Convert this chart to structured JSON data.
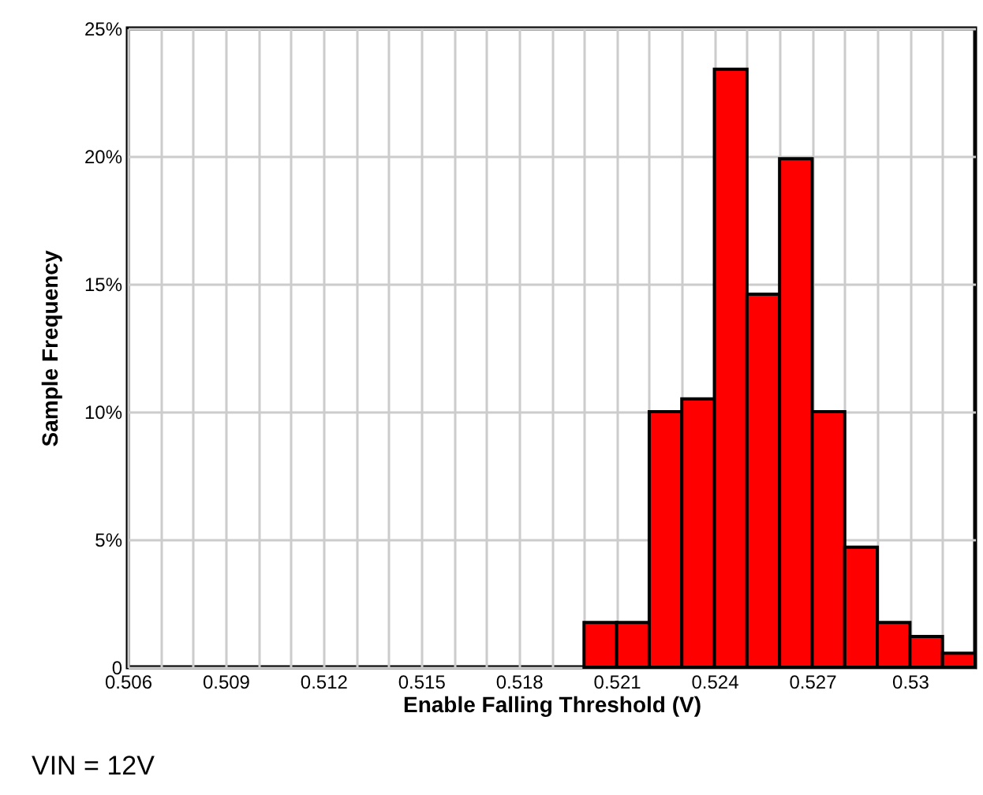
{
  "chart_data": {
    "type": "histogram",
    "xlabel": "Enable Falling Threshold (V)",
    "ylabel": "Sample Frequency",
    "bins": [
      0.52,
      0.521,
      0.522,
      0.523,
      0.524,
      0.525,
      0.526,
      0.527,
      0.528,
      0.529,
      0.53,
      0.531,
      0.532
    ],
    "values": [
      1.75,
      1.75,
      10,
      10.5,
      23.4,
      14.6,
      19.9,
      10,
      4.7,
      1.75,
      1.2,
      0.55
    ],
    "color": "#ff0000",
    "xlim": [
      0.506,
      0.532
    ],
    "xticks": [
      0.506,
      {
        "value": 0.507,
        "label": null
      },
      {
        "value": 0.508,
        "label": null
      },
      0.509,
      {
        "value": 0.51,
        "label": null
      },
      {
        "value": 0.511,
        "label": null
      },
      0.512,
      {
        "value": 0.513,
        "label": null
      },
      {
        "value": 0.514,
        "label": null
      },
      0.515,
      {
        "value": 0.516,
        "label": null
      },
      {
        "value": 0.517,
        "label": null
      },
      0.518,
      {
        "value": 0.519,
        "label": null
      },
      {
        "value": 0.52,
        "label": null
      },
      0.521,
      {
        "value": 0.522,
        "label": null
      },
      {
        "value": 0.523,
        "label": null
      },
      0.524,
      {
        "value": 0.525,
        "label": null
      },
      {
        "value": 0.526,
        "label": null
      },
      0.527,
      {
        "value": 0.528,
        "label": null
      },
      {
        "value": 0.529,
        "label": null
      },
      0.53,
      {
        "value": 0.531,
        "label": null
      }
    ],
    "ylim": [
      0,
      25
    ],
    "yticks": [
      0,
      {
        "value": 5,
        "label": "5%"
      },
      {
        "value": 10,
        "label": "10%"
      },
      {
        "value": 15,
        "label": "15%"
      },
      {
        "value": 20,
        "label": "20%"
      },
      {
        "value": 25,
        "label": "25%"
      }
    ],
    "grid": true,
    "annotations": [
      "VIN = 12V"
    ]
  }
}
